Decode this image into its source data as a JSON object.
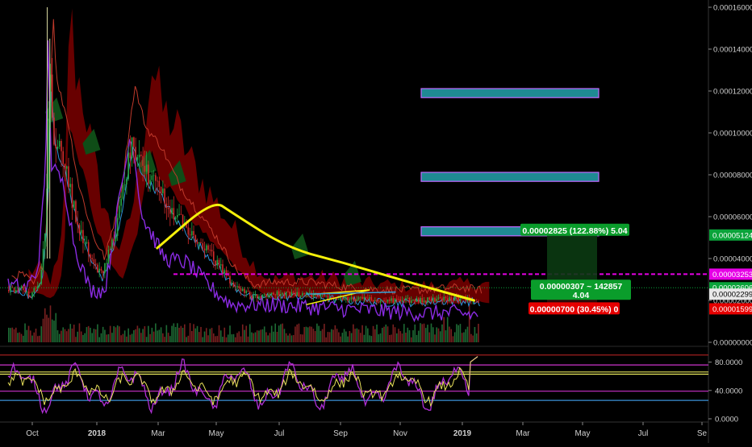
{
  "chart_data": [
    {
      "type": "candlestick",
      "pane": "price",
      "ylim": [
        0,
        0.00016
      ],
      "y_ticks": [
        "0.00016000",
        "0.00014000",
        "0.00012000",
        "0.00010000",
        "0.00008000",
        "0.00006000",
        "0.00004000",
        "0.00002000",
        "0.00000000"
      ],
      "x_ticks": [
        "Oct",
        "2018",
        "Mar",
        "May",
        "Jul",
        "Sep",
        "Nov",
        "2019",
        "Mar",
        "May",
        "Jul",
        "Se"
      ],
      "grid": false,
      "price_labels": [
        {
          "text": "0.00005124",
          "color": "#0aa33a"
        },
        {
          "text": "0.00003253",
          "color": "#e600e6"
        },
        {
          "text": "0.00002606",
          "color": "#0aa33a"
        },
        {
          "text": "0.00002299",
          "color": "#e8e8e8"
        },
        {
          "text": "0.00001599",
          "color": "#e60000"
        }
      ],
      "price_series_approx": [
        [
          0,
          2.5e-05
        ],
        [
          0.3,
          2.6e-05
        ],
        [
          0.6,
          2.2e-05
        ],
        [
          0.85,
          3e-05
        ],
        [
          1.0,
          6e-05
        ],
        [
          1.1,
          0.00013
        ],
        [
          1.2,
          0.0001
        ],
        [
          1.5,
          8.5e-05
        ],
        [
          1.8,
          6e-05
        ],
        [
          2.2,
          4e-05
        ],
        [
          2.5,
          3.2e-05
        ],
        [
          2.9,
          5.5e-05
        ],
        [
          3.0,
          6.5e-05
        ],
        [
          3.3,
          9.8e-05
        ],
        [
          3.6,
          8.2e-05
        ],
        [
          4.0,
          7.5e-05
        ],
        [
          4.5,
          6e-05
        ],
        [
          5.0,
          5e-05
        ],
        [
          5.5,
          4e-05
        ],
        [
          6.0,
          2.8e-05
        ],
        [
          6.5,
          2.2e-05
        ],
        [
          7.0,
          2.3e-05
        ],
        [
          8.0,
          2.3e-05
        ],
        [
          9.0,
          2.1e-05
        ],
        [
          10.0,
          2e-05
        ],
        [
          11.0,
          2e-05
        ],
        [
          12.0,
          2.1e-05
        ],
        [
          12.6,
          2e-05
        ],
        [
          13.0,
          2.5e-05
        ]
      ],
      "purple_line_approx": [
        [
          0,
          2.7e-05
        ],
        [
          0.5,
          2.6e-05
        ],
        [
          0.8,
          3.5e-05
        ],
        [
          1.0,
          8e-05
        ],
        [
          1.08,
          0.00015
        ],
        [
          1.15,
          8.5e-05
        ],
        [
          1.5,
          7.5e-05
        ],
        [
          1.8,
          4.5e-05
        ],
        [
          2.2,
          2.5e-05
        ],
        [
          2.6,
          2.5e-05
        ],
        [
          3.0,
          7e-05
        ],
        [
          3.3,
          0.0001
        ],
        [
          3.6,
          6e-05
        ],
        [
          4.2,
          4e-05
        ],
        [
          4.8,
          3.8e-05
        ],
        [
          5.5,
          2.5e-05
        ],
        [
          6.0,
          1.8e-05
        ],
        [
          7.0,
          1.8e-05
        ],
        [
          8.0,
          1.7e-05
        ],
        [
          9.0,
          1.6e-05
        ],
        [
          10.0,
          1.5e-05
        ],
        [
          11.0,
          1.4e-05
        ],
        [
          12.0,
          1.4e-05
        ],
        [
          12.6,
          1.3e-05
        ]
      ],
      "trendline_yellow": [
        [
          4.0,
          4.5e-05
        ],
        [
          5.5,
          6.8e-05
        ],
        [
          6.0,
          6.2e-05
        ],
        [
          7.5,
          4.5e-05
        ],
        [
          9.0,
          3.8e-05
        ],
        [
          10.5,
          3e-05
        ],
        [
          12.5,
          2e-05
        ]
      ],
      "horizontal_levels": [
        {
          "value": 3.253e-05,
          "style": "dashed",
          "color": "#e600e6"
        },
        {
          "value": 2.606e-05,
          "style": "dotted",
          "color": "#0aa33a"
        }
      ],
      "target_boxes": [
        {
          "y_low": 0.000118,
          "y_high": 0.00012
        },
        {
          "y_low": 7.8e-05,
          "y_high": 8e-05
        },
        {
          "y_low": 5.2e-05,
          "y_high": 5.4e-05
        }
      ],
      "position_tool": {
        "target_label": "0.00002825 (122.88%) 5.04",
        "entry_label_line1": "0.00000307 ~ 142857",
        "entry_label_line2": "4.04",
        "stop_label": "0.00000700 (30.45%) 0"
      }
    },
    {
      "type": "line",
      "pane": "oscillator",
      "ylim": [
        0,
        100
      ],
      "y_ticks": [
        "80.0000",
        "40.0000",
        "0.0000"
      ],
      "levels": [
        {
          "value": 90,
          "color": "#b22222"
        },
        {
          "value": 76,
          "color": "#cc33cc"
        },
        {
          "value": 63,
          "color": "#ffff66"
        },
        {
          "value": 39,
          "color": "#cc33cc"
        },
        {
          "value": 26,
          "color": "#3a8fd6"
        }
      ]
    }
  ],
  "colors": {
    "background": "#000000",
    "up": "#27a744",
    "down": "#d52b2b",
    "purple": "#8a2be2",
    "yellow": "#f5f00a",
    "cloud_red": "#7a0000",
    "cloud_green": "#0f4d17",
    "target_box": "#1f8a93"
  }
}
